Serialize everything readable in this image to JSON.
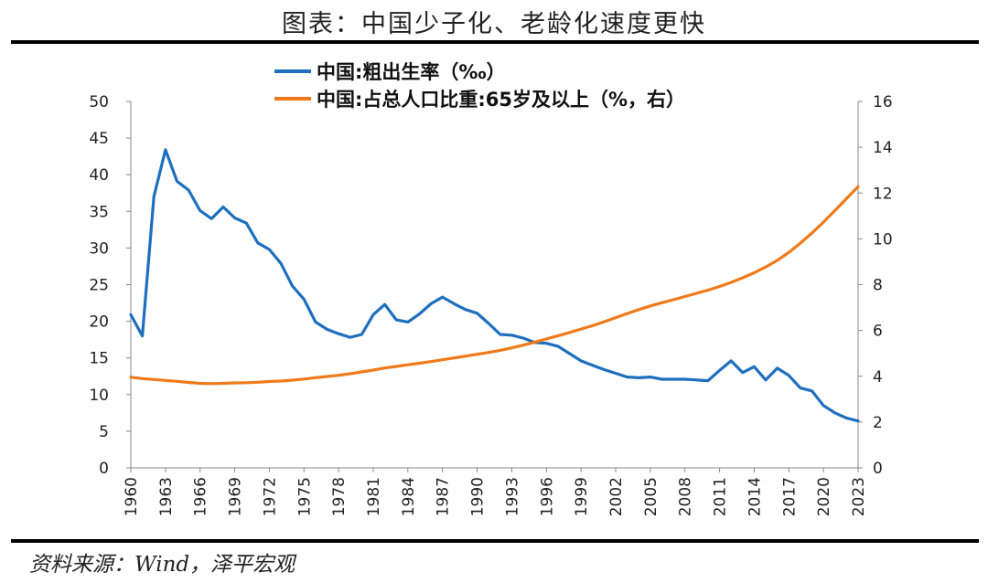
{
  "header": {
    "title": "图表：中国少子化、老龄化速度更快"
  },
  "footer": {
    "source": "资料来源：Wind，泽平宏观"
  },
  "chart_data": {
    "type": "line",
    "x": [
      1960,
      1961,
      1962,
      1963,
      1964,
      1965,
      1966,
      1967,
      1968,
      1969,
      1970,
      1971,
      1972,
      1973,
      1974,
      1975,
      1976,
      1977,
      1978,
      1979,
      1980,
      1981,
      1982,
      1983,
      1984,
      1985,
      1986,
      1987,
      1988,
      1989,
      1990,
      1991,
      1992,
      1993,
      1994,
      1995,
      1996,
      1997,
      1998,
      1999,
      2000,
      2001,
      2002,
      2003,
      2004,
      2005,
      2006,
      2007,
      2008,
      2009,
      2010,
      2011,
      2012,
      2013,
      2014,
      2015,
      2016,
      2017,
      2018,
      2019,
      2020,
      2021,
      2022,
      2023
    ],
    "x_ticks": [
      "1960",
      "1963",
      "1966",
      "1969",
      "1972",
      "1975",
      "1978",
      "1981",
      "1984",
      "1987",
      "1990",
      "1993",
      "1996",
      "1999",
      "2002",
      "2005",
      "2008",
      "2011",
      "2014",
      "2017",
      "2020",
      "2023"
    ],
    "y_left": {
      "ylim": [
        0,
        50
      ],
      "ticks": [
        "0",
        "5",
        "10",
        "15",
        "20",
        "25",
        "30",
        "35",
        "40",
        "45",
        "50"
      ]
    },
    "y_right": {
      "ylim": [
        0,
        16
      ],
      "ticks": [
        "0",
        "2",
        "4",
        "6",
        "8",
        "10",
        "12",
        "14",
        "16"
      ]
    },
    "series": [
      {
        "name": "中国:粗出生率（‰）",
        "axis": "left",
        "color": "#1f6fbf",
        "values": [
          20.9,
          18.0,
          37.0,
          43.4,
          39.1,
          37.9,
          35.1,
          34.0,
          35.6,
          34.1,
          33.4,
          30.7,
          29.8,
          27.9,
          24.8,
          23.0,
          19.9,
          18.9,
          18.3,
          17.8,
          18.2,
          20.9,
          22.3,
          20.2,
          19.9,
          21.0,
          22.4,
          23.3,
          22.4,
          21.6,
          21.1,
          19.7,
          18.2,
          18.1,
          17.7,
          17.1,
          17.0,
          16.6,
          15.6,
          14.6,
          14.0,
          13.4,
          12.9,
          12.4,
          12.3,
          12.4,
          12.1,
          12.1,
          12.1,
          12.0,
          11.9,
          13.3,
          14.6,
          13.0,
          13.8,
          12.0,
          13.6,
          12.6,
          10.9,
          10.5,
          8.5,
          7.5,
          6.8,
          6.4
        ]
      },
      {
        "name": "中国:占总人口比重:65岁及以上（%，右）",
        "axis": "right",
        "color": "#f07a1a",
        "values": [
          3.96,
          3.9,
          3.86,
          3.82,
          3.78,
          3.73,
          3.69,
          3.68,
          3.69,
          3.71,
          3.72,
          3.74,
          3.77,
          3.79,
          3.83,
          3.88,
          3.94,
          3.99,
          4.04,
          4.11,
          4.19,
          4.27,
          4.36,
          4.43,
          4.5,
          4.57,
          4.64,
          4.72,
          4.8,
          4.88,
          4.96,
          5.04,
          5.13,
          5.24,
          5.36,
          5.49,
          5.63,
          5.77,
          5.91,
          6.06,
          6.21,
          6.38,
          6.56,
          6.74,
          6.91,
          7.07,
          7.21,
          7.34,
          7.48,
          7.62,
          7.76,
          7.92,
          8.1,
          8.3,
          8.52,
          8.77,
          9.06,
          9.41,
          9.81,
          10.25,
          10.73,
          11.24,
          11.76,
          12.28
        ]
      }
    ]
  }
}
